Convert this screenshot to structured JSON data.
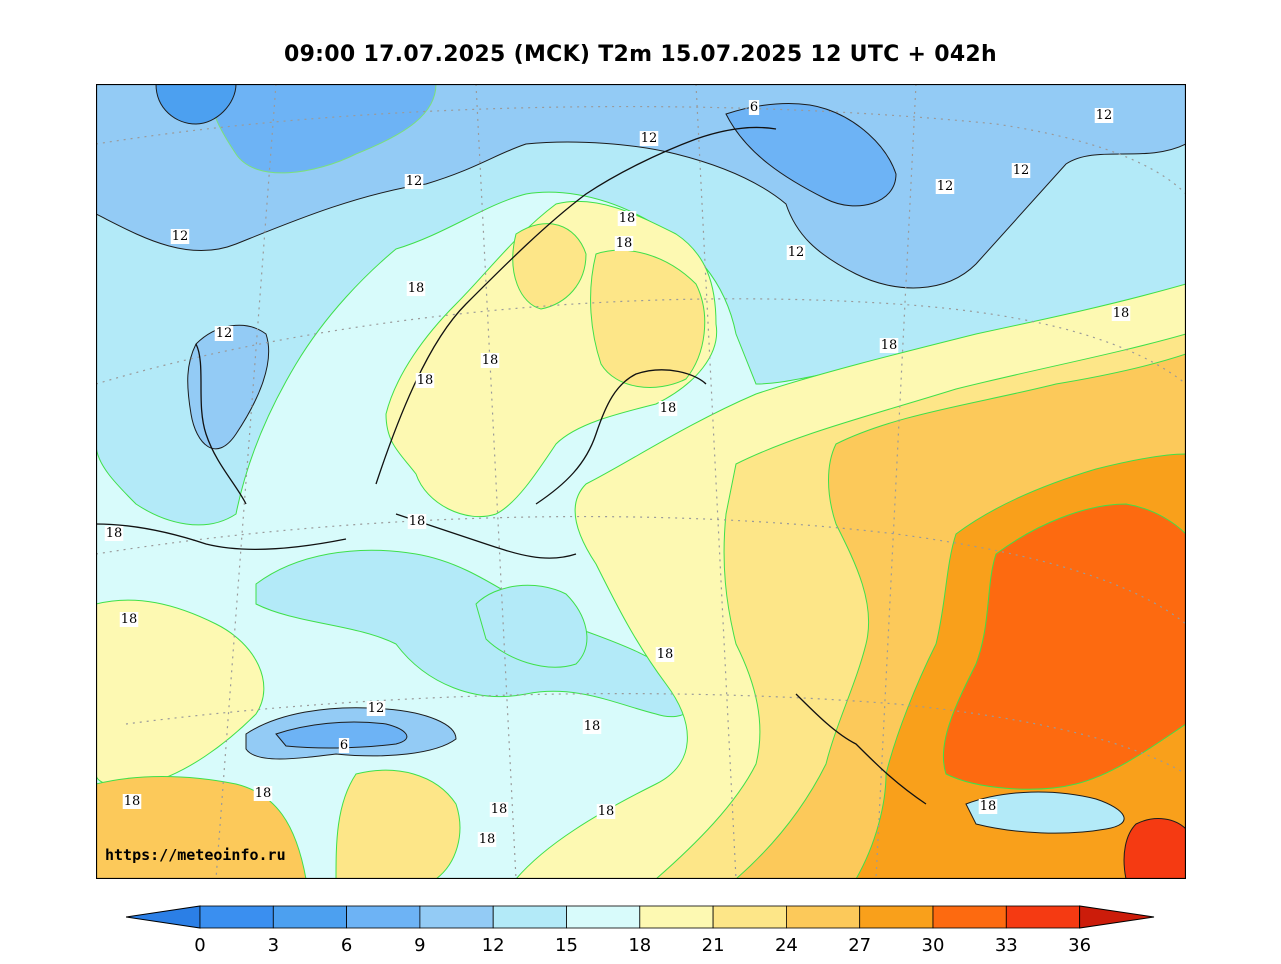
{
  "title": "09:00 17.07.2025 (MCK) T2m 15.07.2025 12 UTC + 042h",
  "credit": "https://meteoinfo.ru",
  "map": {
    "variable": "T2m",
    "region": "Northern and Eastern Europe",
    "contour_labels": [
      "6",
      "12",
      "12",
      "12",
      "12",
      "12",
      "12",
      "12",
      "12",
      "12",
      "6",
      "18",
      "18",
      "18",
      "18",
      "18",
      "18",
      "18",
      "18",
      "18",
      "18",
      "18",
      "18",
      "18",
      "18",
      "18",
      "18",
      "18",
      "18",
      "18"
    ]
  },
  "colorbar": {
    "ticks": [
      "0",
      "3",
      "6",
      "9",
      "12",
      "15",
      "18",
      "21",
      "24",
      "27",
      "30",
      "33",
      "36"
    ],
    "colors": [
      "#3a8ff0",
      "#4ca0f0",
      "#6db3f5",
      "#93cbf5",
      "#b3eaf8",
      "#d8fbfb",
      "#fdf9b2",
      "#fde688",
      "#fcc95a",
      "#f9a01b",
      "#fd6a10",
      "#f53a12",
      "#d82810"
    ],
    "low_extend_color": "#2b7fe6",
    "high_extend_color": "#cc1c0a"
  }
}
